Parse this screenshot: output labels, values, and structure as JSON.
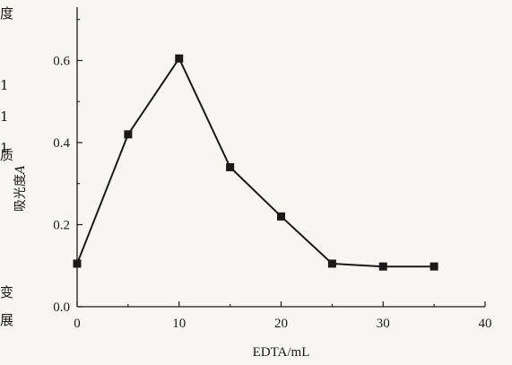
{
  "chart_data": {
    "type": "line",
    "xlabel": "EDTA/mL",
    "ylabel": "吸光度A",
    "ylabel_symbol": "A",
    "xlim": [
      0,
      40
    ],
    "ylim": [
      0.0,
      0.7
    ],
    "xticks": [
      0,
      10,
      20,
      30,
      40
    ],
    "xtick_labels": [
      "0",
      "10",
      "20",
      "30",
      "40"
    ],
    "yticks": [
      0.0,
      0.2,
      0.4,
      0.6
    ],
    "ytick_labels": [
      "0.0",
      "0.2",
      "0.4",
      "0.6"
    ],
    "grid": false,
    "series": [
      {
        "marker": "square",
        "color": "#1a1a1a",
        "x": [
          0,
          5,
          10,
          15,
          20,
          25,
          30,
          35
        ],
        "y": [
          0.105,
          0.42,
          0.605,
          0.34,
          0.22,
          0.105,
          0.098,
          0.098
        ]
      }
    ]
  },
  "page_edge_text": [
    "度",
    "1",
    "1",
    "1",
    "质",
    "变",
    "展"
  ]
}
